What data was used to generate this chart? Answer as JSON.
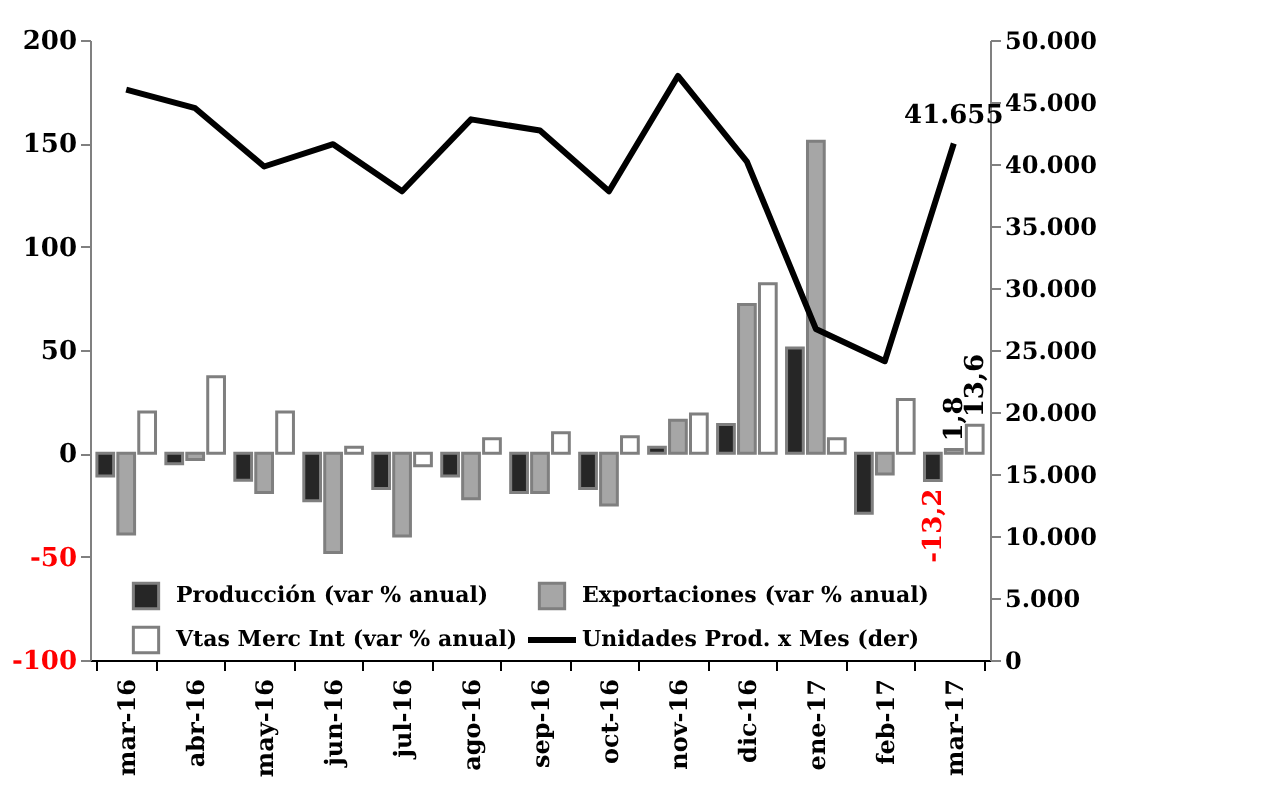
{
  "chart_data": {
    "type": "bar",
    "categories": [
      "mar-16",
      "abr-16",
      "may-16",
      "jun-16",
      "jul-16",
      "ago-16",
      "sep-16",
      "oct-16",
      "nov-16",
      "dic-16",
      "ene-17",
      "feb-17",
      "mar-17"
    ],
    "series": [
      {
        "name": "Producción (var % anual)",
        "color": "#262626",
        "values": [
          -11,
          -5,
          -13,
          -23,
          -17,
          -11,
          -19,
          -17,
          3,
          14,
          51,
          -29,
          -13.2
        ],
        "value_labels": [
          null,
          null,
          null,
          null,
          null,
          null,
          null,
          null,
          null,
          null,
          null,
          null,
          "-13,2"
        ]
      },
      {
        "name": "Exportaciones (var % anual)",
        "color": "#a6a6a6",
        "values": [
          -39,
          -3,
          -19,
          -48,
          -40,
          -22,
          -19,
          -25,
          16,
          72,
          151,
          -10,
          1.8
        ],
        "value_labels": [
          null,
          null,
          null,
          null,
          null,
          null,
          null,
          null,
          null,
          null,
          null,
          null,
          "1,8"
        ]
      },
      {
        "name": "Vtas Merc Int (var % anual)",
        "color": "#ffffff",
        "values": [
          20,
          37,
          20,
          3,
          -6,
          7,
          10,
          8,
          19,
          82,
          7,
          26,
          13.6
        ],
        "value_labels": [
          null,
          null,
          null,
          null,
          null,
          null,
          null,
          null,
          null,
          null,
          null,
          null,
          "13,6"
        ]
      },
      {
        "name": "Unidades Prod. x Mes (der)",
        "color": "#000000",
        "type": "line",
        "axis": "y2",
        "values": [
          46000,
          44500,
          39800,
          41600,
          37800,
          43600,
          42700,
          37800,
          47100,
          40200,
          26700,
          24100,
          41655
        ],
        "value_labels": [
          null,
          null,
          null,
          null,
          null,
          null,
          null,
          null,
          null,
          null,
          null,
          null,
          "41.655"
        ]
      }
    ],
    "ylim": [
      -100,
      200
    ],
    "yticks": [
      -100,
      -50,
      0,
      50,
      100,
      150,
      200
    ],
    "y2lim": [
      0,
      50000
    ],
    "y2ticks": [
      {
        "value": 0,
        "label": "0"
      },
      {
        "value": 5000,
        "label": "5.000"
      },
      {
        "value": 10000,
        "label": "10.000"
      },
      {
        "value": 15000,
        "label": "15.000"
      },
      {
        "value": 20000,
        "label": "20.000"
      },
      {
        "value": 25000,
        "label": "25.000"
      },
      {
        "value": 30000,
        "label": "30.000"
      },
      {
        "value": 35000,
        "label": "35.000"
      },
      {
        "value": 40000,
        "label": "40.000"
      },
      {
        "value": 45000,
        "label": "45.000"
      },
      {
        "value": 50000,
        "label": "50.000"
      }
    ],
    "legend": "bottom"
  }
}
